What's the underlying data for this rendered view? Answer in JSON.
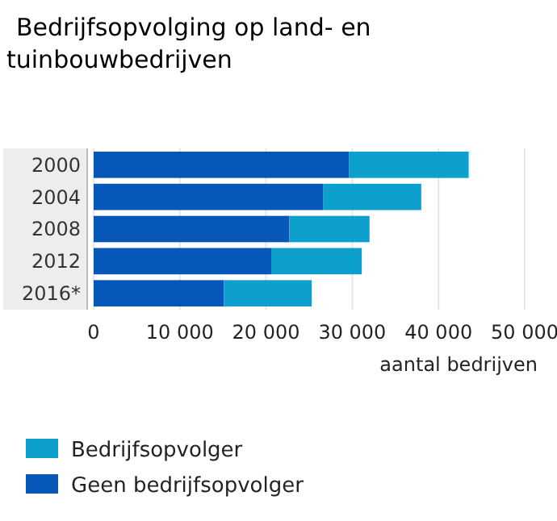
{
  "chart_data": {
    "type": "bar",
    "orientation": "horizontal",
    "stacked": true,
    "title": "Bedrijfsopvolging op land- en tuinbouwbedrijven",
    "xlabel": "aantal bedrijven",
    "categories": [
      "2000",
      "2004",
      "2008",
      "2012",
      "2016*"
    ],
    "series": [
      {
        "name": "Geen bedrijfsopvolger",
        "color": "#0757b8",
        "values": [
          29600,
          26600,
          22700,
          20600,
          15100
        ]
      },
      {
        "name": "Bedrijfsopvolger",
        "color": "#0ea0cd",
        "values": [
          13900,
          11400,
          9300,
          10500,
          10200
        ]
      }
    ],
    "xlim": [
      0,
      50000
    ],
    "xticks": [
      {
        "value": 0,
        "label": "0"
      },
      {
        "value": 10000,
        "label": "10 000"
      },
      {
        "value": 20000,
        "label": "20 000"
      },
      {
        "value": 30000,
        "label": "30 000"
      },
      {
        "value": 40000,
        "label": "40 000"
      },
      {
        "value": 50000,
        "label": "50 000"
      }
    ],
    "grid": "x",
    "legend": "bottom"
  }
}
